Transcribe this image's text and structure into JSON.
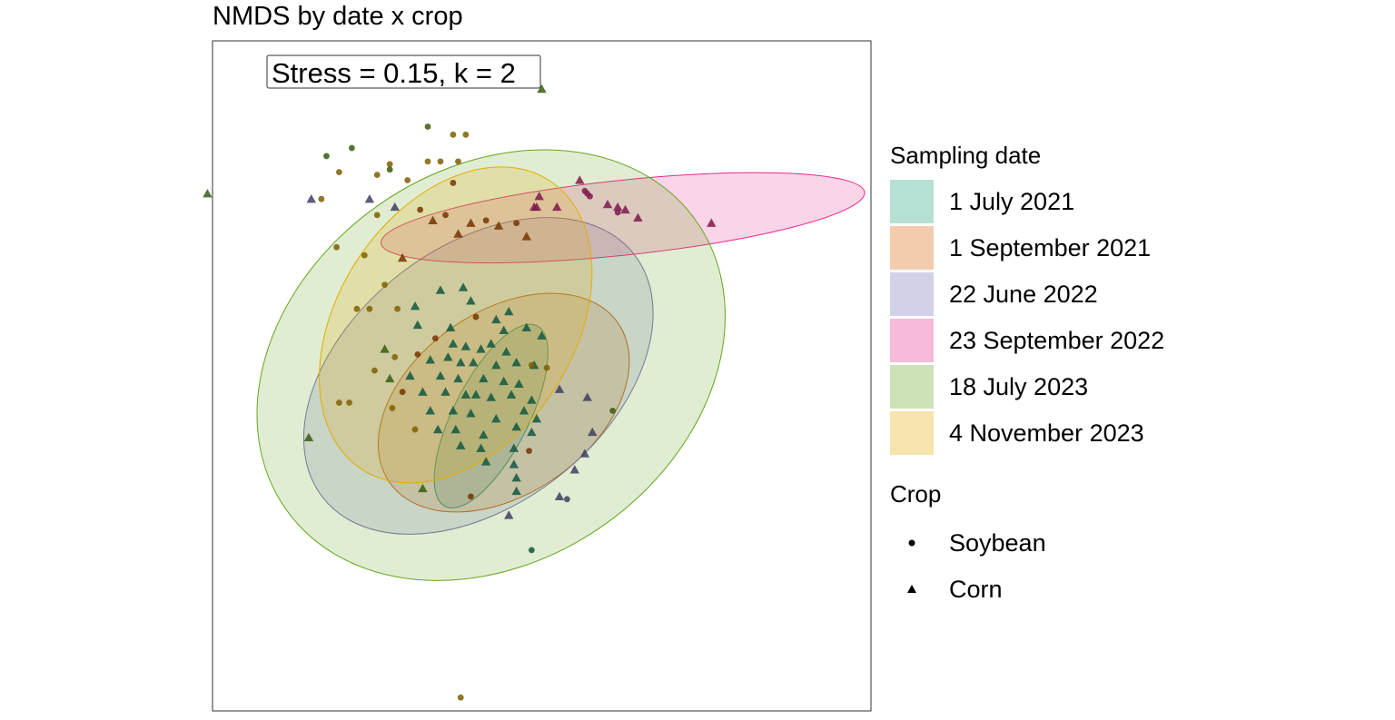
{
  "chart_data": {
    "type": "scatter",
    "title": "NMDS by date x crop",
    "annotation": "Stress = 0.15, k = 2",
    "xlim": [
      -1.3,
      1.3
    ],
    "ylim": [
      -1.25,
      1.25
    ],
    "axes_shown": false,
    "grid": false,
    "legend_position": "right",
    "legend": {
      "color_title": "Sampling date",
      "shape_title": "Crop"
    },
    "groups": [
      {
        "name": "1 July 2021",
        "color": "#1b9e77",
        "ellipse": {
          "cx": -0.2,
          "cy": -0.15,
          "rx": 0.4,
          "ry": 0.14,
          "angle": -63
        }
      },
      {
        "name": "1 September 2021",
        "color": "#d95f02",
        "ellipse": {
          "cx": -0.15,
          "cy": -0.1,
          "rx": 0.55,
          "ry": 0.34,
          "angle": -35
        }
      },
      {
        "name": "22 June 2022",
        "color": "#7570b3",
        "ellipse": {
          "cx": -0.25,
          "cy": 0.0,
          "rx": 0.78,
          "ry": 0.48,
          "angle": -38
        }
      },
      {
        "name": "23 September 2022",
        "color": "#e7298a",
        "ellipse": {
          "cx": 0.32,
          "cy": 0.59,
          "rx": 0.96,
          "ry": 0.14,
          "angle": -6
        }
      },
      {
        "name": "18 July 2023",
        "color": "#66a61e",
        "ellipse": {
          "cx": -0.2,
          "cy": 0.04,
          "rx": 0.99,
          "ry": 0.73,
          "angle": -35
        }
      },
      {
        "name": "4 November 2023",
        "color": "#e6ab02",
        "ellipse": {
          "cx": -0.34,
          "cy": 0.19,
          "rx": 0.68,
          "ry": 0.44,
          "angle": -57
        }
      }
    ],
    "crops": [
      {
        "name": "Soybean",
        "shape": "circle"
      },
      {
        "name": "Corn",
        "shape": "triangle"
      }
    ],
    "points": [
      {
        "x": 0.0,
        "y": 1.07,
        "crop": "Corn",
        "group": "18 July 2023"
      },
      {
        "x": -1.32,
        "y": 0.68,
        "crop": "Corn",
        "group": "18 July 2023"
      },
      {
        "x": -0.91,
        "y": 0.66,
        "crop": "Corn",
        "group": "22 June 2022"
      },
      {
        "x": -0.92,
        "y": -0.23,
        "crop": "Corn",
        "group": "18 July 2023"
      },
      {
        "x": -0.47,
        "y": -0.42,
        "crop": "Corn",
        "group": "18 July 2023"
      },
      {
        "x": -0.13,
        "y": -0.52,
        "crop": "Corn",
        "group": "22 June 2022"
      },
      {
        "x": -0.32,
        "y": -1.2,
        "crop": "Soybean",
        "group": "4 November 2023"
      },
      {
        "x": 0.15,
        "y": 0.73,
        "crop": "Corn",
        "group": "23 September 2022"
      },
      {
        "x": 0.67,
        "y": 0.57,
        "crop": "Corn",
        "group": "23 September 2022"
      },
      {
        "x": 0.38,
        "y": 0.59,
        "crop": "Corn",
        "group": "23 September 2022"
      },
      {
        "x": 0.33,
        "y": 0.62,
        "crop": "Corn",
        "group": "23 September 2022"
      },
      {
        "x": 0.3,
        "y": 0.63,
        "crop": "Corn",
        "group": "23 September 2022"
      },
      {
        "x": 0.26,
        "y": 0.64,
        "crop": "Corn",
        "group": "23 September 2022"
      },
      {
        "x": 0.19,
        "y": 0.67,
        "crop": "Soybean",
        "group": "23 September 2022"
      },
      {
        "x": 0.18,
        "y": 0.68,
        "crop": "Soybean",
        "group": "23 September 2022"
      },
      {
        "x": 0.17,
        "y": 0.69,
        "crop": "Soybean",
        "group": "23 September 2022"
      },
      {
        "x": 0.3,
        "y": 0.61,
        "crop": "Soybean",
        "group": "23 September 2022"
      },
      {
        "x": -0.02,
        "y": 0.63,
        "crop": "Corn",
        "group": "23 September 2022"
      },
      {
        "x": -0.03,
        "y": 0.63,
        "crop": "Corn",
        "group": "23 September 2022"
      },
      {
        "x": -0.01,
        "y": 0.67,
        "crop": "Corn",
        "group": "23 September 2022"
      },
      {
        "x": 0.06,
        "y": 0.63,
        "crop": "Corn",
        "group": "23 September 2022"
      },
      {
        "x": -0.8,
        "y": 0.76,
        "crop": "Soybean",
        "group": "4 November 2023"
      },
      {
        "x": -0.6,
        "y": 0.79,
        "crop": "Soybean",
        "group": "4 November 2023"
      },
      {
        "x": -0.45,
        "y": 0.8,
        "crop": "Soybean",
        "group": "4 November 2023"
      },
      {
        "x": -0.4,
        "y": 0.8,
        "crop": "Soybean",
        "group": "4 November 2023"
      },
      {
        "x": -0.33,
        "y": 0.8,
        "crop": "Soybean",
        "group": "4 November 2023"
      },
      {
        "x": -0.65,
        "y": 0.75,
        "crop": "Soybean",
        "group": "4 November 2023"
      },
      {
        "x": -0.53,
        "y": 0.73,
        "crop": "Soybean",
        "group": "4 November 2023"
      },
      {
        "x": -0.35,
        "y": 0.72,
        "crop": "Soybean",
        "group": "1 September 2021"
      },
      {
        "x": -0.87,
        "y": 0.66,
        "crop": "Soybean",
        "group": "4 November 2023"
      },
      {
        "x": -0.68,
        "y": 0.66,
        "crop": "Corn",
        "group": "22 June 2022"
      },
      {
        "x": -0.58,
        "y": 0.63,
        "crop": "Corn",
        "group": "22 June 2022"
      },
      {
        "x": -0.48,
        "y": 0.62,
        "crop": "Soybean",
        "group": "1 September 2021"
      },
      {
        "x": -0.65,
        "y": 0.6,
        "crop": "Soybean",
        "group": "4 November 2023"
      },
      {
        "x": -0.43,
        "y": 0.58,
        "crop": "Corn",
        "group": "1 September 2021"
      },
      {
        "x": -0.38,
        "y": 0.6,
        "crop": "Soybean",
        "group": "1 September 2021"
      },
      {
        "x": -0.28,
        "y": 0.57,
        "crop": "Corn",
        "group": "1 September 2021"
      },
      {
        "x": -0.22,
        "y": 0.58,
        "crop": "Soybean",
        "group": "1 September 2021"
      },
      {
        "x": -0.17,
        "y": 0.56,
        "crop": "Corn",
        "group": "1 September 2021"
      },
      {
        "x": -0.1,
        "y": 0.57,
        "crop": "Soybean",
        "group": "1 September 2021"
      },
      {
        "x": -0.33,
        "y": 0.53,
        "crop": "Corn",
        "group": "1 September 2021"
      },
      {
        "x": -0.06,
        "y": 0.52,
        "crop": "Corn",
        "group": "1 September 2021"
      },
      {
        "x": -0.81,
        "y": 0.48,
        "crop": "Soybean",
        "group": "4 November 2023"
      },
      {
        "x": -0.7,
        "y": 0.45,
        "crop": "Soybean",
        "group": "4 November 2023"
      },
      {
        "x": -0.55,
        "y": 0.44,
        "crop": "Corn",
        "group": "1 September 2021"
      },
      {
        "x": -0.62,
        "y": 0.34,
        "crop": "Soybean",
        "group": "4 November 2023"
      },
      {
        "x": -0.4,
        "y": 0.32,
        "crop": "Corn",
        "group": "1 July 2021"
      },
      {
        "x": -0.31,
        "y": 0.33,
        "crop": "Corn",
        "group": "1 July 2021"
      },
      {
        "x": -0.28,
        "y": 0.28,
        "crop": "Corn",
        "group": "1 July 2021"
      },
      {
        "x": -0.5,
        "y": 0.26,
        "crop": "Corn",
        "group": "1 July 2021"
      },
      {
        "x": -0.57,
        "y": 0.25,
        "crop": "Soybean",
        "group": "4 November 2023"
      },
      {
        "x": -0.73,
        "y": 0.25,
        "crop": "Soybean",
        "group": "4 November 2023"
      },
      {
        "x": -0.68,
        "y": 0.25,
        "crop": "Soybean",
        "group": "4 November 2023"
      },
      {
        "x": -0.49,
        "y": 0.19,
        "crop": "Corn",
        "group": "1 July 2021"
      },
      {
        "x": -0.36,
        "y": 0.18,
        "crop": "Corn",
        "group": "1 July 2021"
      },
      {
        "x": -0.18,
        "y": 0.21,
        "crop": "Corn",
        "group": "1 July 2021"
      },
      {
        "x": -0.13,
        "y": 0.24,
        "crop": "Corn",
        "group": "1 July 2021"
      },
      {
        "x": -0.26,
        "y": 0.22,
        "crop": "Soybean",
        "group": "1 September 2021"
      },
      {
        "x": -0.15,
        "y": 0.17,
        "crop": "Corn",
        "group": "1 July 2021"
      },
      {
        "x": -0.06,
        "y": 0.18,
        "crop": "Corn",
        "group": "1 July 2021"
      },
      {
        "x": 0.0,
        "y": 0.15,
        "crop": "Corn",
        "group": "1 July 2021"
      },
      {
        "x": -0.42,
        "y": 0.14,
        "crop": "Soybean",
        "group": "1 September 2021"
      },
      {
        "x": -0.35,
        "y": 0.12,
        "crop": "Corn",
        "group": "1 July 2021"
      },
      {
        "x": -0.3,
        "y": 0.11,
        "crop": "Corn",
        "group": "1 July 2021"
      },
      {
        "x": -0.24,
        "y": 0.1,
        "crop": "Corn",
        "group": "1 July 2021"
      },
      {
        "x": -0.2,
        "y": 0.12,
        "crop": "Corn",
        "group": "1 July 2021"
      },
      {
        "x": -0.14,
        "y": 0.09,
        "crop": "Corn",
        "group": "1 July 2021"
      },
      {
        "x": -0.62,
        "y": 0.1,
        "crop": "Corn",
        "group": "18 July 2023"
      },
      {
        "x": -0.58,
        "y": 0.07,
        "crop": "Soybean",
        "group": "4 November 2023"
      },
      {
        "x": -0.49,
        "y": 0.08,
        "crop": "Soybean",
        "group": "1 September 2021"
      },
      {
        "x": -0.44,
        "y": 0.06,
        "crop": "Corn",
        "group": "1 July 2021"
      },
      {
        "x": -0.37,
        "y": 0.07,
        "crop": "Corn",
        "group": "1 July 2021"
      },
      {
        "x": -0.32,
        "y": 0.05,
        "crop": "Corn",
        "group": "1 July 2021"
      },
      {
        "x": -0.27,
        "y": 0.05,
        "crop": "Corn",
        "group": "1 July 2021"
      },
      {
        "x": -0.18,
        "y": 0.04,
        "crop": "Corn",
        "group": "1 July 2021"
      },
      {
        "x": -0.1,
        "y": 0.05,
        "crop": "Corn",
        "group": "1 July 2021"
      },
      {
        "x": -0.03,
        "y": 0.04,
        "crop": "Corn",
        "group": "1 July 2021"
      },
      {
        "x": 0.02,
        "y": 0.03,
        "crop": "Soybean",
        "group": "4 November 2023"
      },
      {
        "x": -0.66,
        "y": 0.02,
        "crop": "Soybean",
        "group": "4 November 2023"
      },
      {
        "x": -0.6,
        "y": -0.01,
        "crop": "Corn",
        "group": "18 July 2023"
      },
      {
        "x": -0.52,
        "y": 0.0,
        "crop": "Corn",
        "group": "1 July 2021"
      },
      {
        "x": -0.4,
        "y": 0.0,
        "crop": "Corn",
        "group": "1 July 2021"
      },
      {
        "x": -0.33,
        "y": -0.01,
        "crop": "Corn",
        "group": "1 July 2021"
      },
      {
        "x": -0.23,
        "y": -0.01,
        "crop": "Corn",
        "group": "1 July 2021"
      },
      {
        "x": -0.15,
        "y": -0.02,
        "crop": "Corn",
        "group": "1 July 2021"
      },
      {
        "x": -0.09,
        "y": -0.03,
        "crop": "Corn",
        "group": "1 July 2021"
      },
      {
        "x": -0.55,
        "y": -0.06,
        "crop": "Soybean",
        "group": "1 September 2021"
      },
      {
        "x": -0.47,
        "y": -0.06,
        "crop": "Corn",
        "group": "1 July 2021"
      },
      {
        "x": -0.38,
        "y": -0.06,
        "crop": "Corn",
        "group": "1 July 2021"
      },
      {
        "x": -0.3,
        "y": -0.07,
        "crop": "Corn",
        "group": "1 July 2021"
      },
      {
        "x": -0.26,
        "y": -0.07,
        "crop": "Corn",
        "group": "1 July 2021"
      },
      {
        "x": -0.2,
        "y": -0.08,
        "crop": "Corn",
        "group": "1 July 2021"
      },
      {
        "x": -0.12,
        "y": -0.07,
        "crop": "Corn",
        "group": "1 July 2021"
      },
      {
        "x": -0.04,
        "y": -0.09,
        "crop": "Corn",
        "group": "1 July 2021"
      },
      {
        "x": 0.07,
        "y": -0.05,
        "crop": "Corn",
        "group": "22 June 2022"
      },
      {
        "x": 0.18,
        "y": -0.08,
        "crop": "Corn",
        "group": "22 June 2022"
      },
      {
        "x": -0.8,
        "y": -0.1,
        "crop": "Soybean",
        "group": "4 November 2023"
      },
      {
        "x": -0.76,
        "y": -0.1,
        "crop": "Soybean",
        "group": "4 November 2023"
      },
      {
        "x": -0.59,
        "y": -0.12,
        "crop": "Soybean",
        "group": "4 November 2023"
      },
      {
        "x": -0.44,
        "y": -0.13,
        "crop": "Corn",
        "group": "1 July 2021"
      },
      {
        "x": -0.35,
        "y": -0.13,
        "crop": "Corn",
        "group": "1 July 2021"
      },
      {
        "x": -0.28,
        "y": -0.14,
        "crop": "Corn",
        "group": "1 July 2021"
      },
      {
        "x": -0.18,
        "y": -0.16,
        "crop": "Corn",
        "group": "1 July 2021"
      },
      {
        "x": -0.07,
        "y": -0.13,
        "crop": "Corn",
        "group": "1 July 2021"
      },
      {
        "x": -0.02,
        "y": -0.16,
        "crop": "Corn",
        "group": "1 July 2021"
      },
      {
        "x": 0.28,
        "y": -0.13,
        "crop": "Soybean",
        "group": "18 July 2023"
      },
      {
        "x": -0.5,
        "y": -0.2,
        "crop": "Soybean",
        "group": "4 November 2023"
      },
      {
        "x": -0.41,
        "y": -0.2,
        "crop": "Corn",
        "group": "1 July 2021"
      },
      {
        "x": -0.34,
        "y": -0.2,
        "crop": "Corn",
        "group": "1 July 2021"
      },
      {
        "x": -0.23,
        "y": -0.22,
        "crop": "Corn",
        "group": "1 July 2021"
      },
      {
        "x": -0.1,
        "y": -0.19,
        "crop": "Corn",
        "group": "1 July 2021"
      },
      {
        "x": -0.04,
        "y": -0.21,
        "crop": "Corn",
        "group": "1 July 2021"
      },
      {
        "x": 0.2,
        "y": -0.21,
        "crop": "Corn",
        "group": "22 June 2022"
      },
      {
        "x": -0.32,
        "y": -0.26,
        "crop": "Corn",
        "group": "1 July 2021"
      },
      {
        "x": -0.24,
        "y": -0.27,
        "crop": "Corn",
        "group": "1 July 2021"
      },
      {
        "x": -0.11,
        "y": -0.27,
        "crop": "Corn",
        "group": "1 July 2021"
      },
      {
        "x": -0.05,
        "y": -0.28,
        "crop": "Soybean",
        "group": "1 September 2021"
      },
      {
        "x": 0.17,
        "y": -0.29,
        "crop": "Corn",
        "group": "22 June 2022"
      },
      {
        "x": -0.22,
        "y": -0.32,
        "crop": "Corn",
        "group": "1 July 2021"
      },
      {
        "x": -0.11,
        "y": -0.33,
        "crop": "Corn",
        "group": "1 July 2021"
      },
      {
        "x": -0.1,
        "y": -0.38,
        "crop": "Corn",
        "group": "1 July 2021"
      },
      {
        "x": 0.13,
        "y": -0.35,
        "crop": "Corn",
        "group": "22 June 2022"
      },
      {
        "x": -0.28,
        "y": -0.45,
        "crop": "Soybean",
        "group": "1 September 2021"
      },
      {
        "x": -0.1,
        "y": -0.43,
        "crop": "Corn",
        "group": "1 July 2021"
      },
      {
        "x": 0.07,
        "y": -0.45,
        "crop": "Corn",
        "group": "22 June 2022"
      },
      {
        "x": 0.1,
        "y": -0.46,
        "crop": "Soybean",
        "group": "22 June 2022"
      },
      {
        "x": -0.04,
        "y": -0.65,
        "crop": "Soybean",
        "group": "1 July 2021"
      },
      {
        "x": -0.3,
        "y": 0.9,
        "crop": "Soybean",
        "group": "4 November 2023"
      },
      {
        "x": -0.35,
        "y": 0.9,
        "crop": "Soybean",
        "group": "4 November 2023"
      },
      {
        "x": -0.85,
        "y": 0.82,
        "crop": "Soybean",
        "group": "18 July 2023"
      },
      {
        "x": -0.75,
        "y": 0.85,
        "crop": "Soybean",
        "group": "18 July 2023"
      },
      {
        "x": -0.45,
        "y": 0.93,
        "crop": "Soybean",
        "group": "18 July 2023"
      },
      {
        "x": -0.6,
        "y": 0.77,
        "crop": "Soybean",
        "group": "18 July 2023"
      },
      {
        "x": -0.04,
        "y": 0.04,
        "crop": "Soybean",
        "group": "4 November 2023"
      }
    ]
  }
}
